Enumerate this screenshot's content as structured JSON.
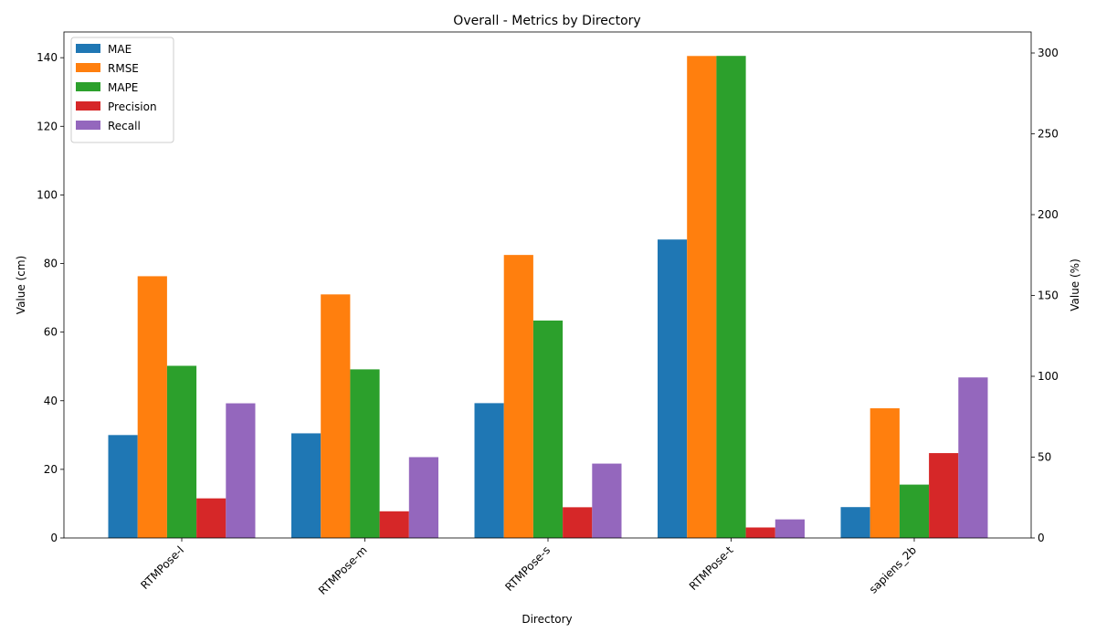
{
  "chart_data": {
    "type": "bar",
    "title": "Overall - Metrics by Directory",
    "xlabel": "Directory",
    "ylabel_left": "Value (cm)",
    "ylabel_right": "Value (%)",
    "categories": [
      "RTMPose-l",
      "RTMPose-m",
      "RTMPose-s",
      "RTMPose-t",
      "sapiens_2b"
    ],
    "ylim_left": [
      0,
      147.5
    ],
    "ylim_right": [
      0,
      313
    ],
    "yticks_left": [
      0,
      20,
      40,
      60,
      80,
      100,
      120,
      140
    ],
    "yticks_right": [
      0,
      50,
      100,
      150,
      200,
      250,
      300
    ],
    "grid": false,
    "legend_position": "top-left",
    "series": [
      {
        "name": "MAE",
        "axis": "left",
        "color": "#1f77b4",
        "values": [
          30.0,
          30.5,
          39.3,
          87.0,
          9.0
        ]
      },
      {
        "name": "RMSE",
        "axis": "left",
        "color": "#ff7f0e",
        "values": [
          76.3,
          71.0,
          82.5,
          140.5,
          37.8
        ]
      },
      {
        "name": "MAPE",
        "axis": "right",
        "color": "#2ca02c",
        "values": [
          106.5,
          104.3,
          134.5,
          298.2,
          33.0
        ]
      },
      {
        "name": "Precision",
        "axis": "right",
        "color": "#d62728",
        "values": [
          24.5,
          16.5,
          19.0,
          6.5,
          52.5
        ]
      },
      {
        "name": "Recall",
        "axis": "right",
        "color": "#9467bd",
        "values": [
          83.3,
          50.0,
          46.0,
          11.5,
          99.3
        ]
      }
    ]
  }
}
